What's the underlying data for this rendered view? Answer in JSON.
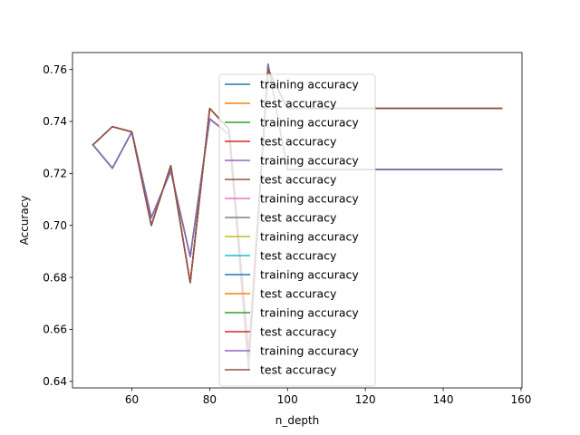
{
  "chart_data": {
    "type": "line",
    "title": "",
    "xlabel": "n_depth",
    "ylabel": "Accuracy",
    "xlim": [
      44.75,
      160.25
    ],
    "ylim": [
      0.6375,
      0.7665
    ],
    "xticks": [
      60,
      80,
      100,
      120,
      140,
      160
    ],
    "yticks": [
      0.64,
      0.66,
      0.68,
      0.7,
      0.72,
      0.74,
      0.76
    ],
    "ytick_labels": [
      "0.64",
      "0.66",
      "0.68",
      "0.70",
      "0.72",
      "0.74",
      "0.76"
    ],
    "grid": false,
    "legend_position": "upper-center",
    "x": [
      50,
      55,
      60,
      65,
      70,
      75,
      80,
      85,
      90,
      95,
      100,
      105,
      110,
      115,
      120,
      125,
      130,
      135,
      140,
      145,
      150,
      155
    ],
    "series": [
      {
        "name": "training accuracy",
        "color": "#1f77b4",
        "values": [
          0.731,
          0.722,
          0.736,
          0.703,
          0.721,
          0.688,
          0.741,
          0.735,
          0.645,
          0.762,
          0.7215,
          0.7215,
          0.7215,
          0.7215,
          0.7215,
          0.7215,
          0.7215,
          0.7215,
          0.7215,
          0.7215,
          0.7215,
          0.7215
        ]
      },
      {
        "name": "test accuracy",
        "color": "#ff7f0e",
        "values": [
          0.731,
          0.738,
          0.736,
          0.7,
          0.723,
          0.678,
          0.745,
          0.737,
          0.65,
          0.76,
          0.745,
          0.745,
          0.745,
          0.745,
          0.745,
          0.745,
          0.745,
          0.745,
          0.745,
          0.745,
          0.745,
          0.745
        ]
      },
      {
        "name": "training accuracy",
        "color": "#2ca02c",
        "values": [
          0.731,
          0.722,
          0.736,
          0.703,
          0.721,
          0.688,
          0.741,
          0.735,
          0.645,
          0.762,
          0.7215,
          0.7215,
          0.7215,
          0.7215,
          0.7215,
          0.7215,
          0.7215,
          0.7215,
          0.7215,
          0.7215,
          0.7215,
          0.7215
        ]
      },
      {
        "name": "test accuracy",
        "color": "#d62728",
        "values": [
          0.731,
          0.738,
          0.736,
          0.7,
          0.723,
          0.678,
          0.745,
          0.737,
          0.65,
          0.76,
          0.745,
          0.745,
          0.745,
          0.745,
          0.745,
          0.745,
          0.745,
          0.745,
          0.745,
          0.745,
          0.745,
          0.745
        ]
      },
      {
        "name": "training accuracy",
        "color": "#9467bd",
        "values": [
          0.731,
          0.722,
          0.736,
          0.703,
          0.721,
          0.688,
          0.741,
          0.735,
          0.645,
          0.762,
          0.7215,
          0.7215,
          0.7215,
          0.7215,
          0.7215,
          0.7215,
          0.7215,
          0.7215,
          0.7215,
          0.7215,
          0.7215,
          0.7215
        ]
      },
      {
        "name": "test accuracy",
        "color": "#8c564b",
        "values": [
          0.731,
          0.738,
          0.736,
          0.7,
          0.723,
          0.678,
          0.745,
          0.737,
          0.65,
          0.76,
          0.745,
          0.745,
          0.745,
          0.745,
          0.745,
          0.745,
          0.745,
          0.745,
          0.745,
          0.745,
          0.745,
          0.745
        ]
      },
      {
        "name": "training accuracy",
        "color": "#e377c2",
        "values": [
          0.731,
          0.722,
          0.736,
          0.703,
          0.721,
          0.688,
          0.741,
          0.735,
          0.645,
          0.762,
          0.7215,
          0.7215,
          0.7215,
          0.7215,
          0.7215,
          0.7215,
          0.7215,
          0.7215,
          0.7215,
          0.7215,
          0.7215,
          0.7215
        ]
      },
      {
        "name": "test accuracy",
        "color": "#7f7f7f",
        "values": [
          0.731,
          0.738,
          0.736,
          0.7,
          0.723,
          0.678,
          0.745,
          0.737,
          0.65,
          0.76,
          0.745,
          0.745,
          0.745,
          0.745,
          0.745,
          0.745,
          0.745,
          0.745,
          0.745,
          0.745,
          0.745,
          0.745
        ]
      },
      {
        "name": "training accuracy",
        "color": "#bcbd22",
        "values": [
          0.731,
          0.722,
          0.736,
          0.703,
          0.721,
          0.688,
          0.741,
          0.735,
          0.645,
          0.762,
          0.7215,
          0.7215,
          0.7215,
          0.7215,
          0.7215,
          0.7215,
          0.7215,
          0.7215,
          0.7215,
          0.7215,
          0.7215,
          0.7215
        ]
      },
      {
        "name": "test accuracy",
        "color": "#17becf",
        "values": [
          0.731,
          0.738,
          0.736,
          0.7,
          0.723,
          0.678,
          0.745,
          0.737,
          0.65,
          0.76,
          0.745,
          0.745,
          0.745,
          0.745,
          0.745,
          0.745,
          0.745,
          0.745,
          0.745,
          0.745,
          0.745,
          0.745
        ]
      },
      {
        "name": "training accuracy",
        "color": "#1f77b4",
        "values": [
          0.731,
          0.722,
          0.736,
          0.703,
          0.721,
          0.688,
          0.741,
          0.735,
          0.645,
          0.762,
          0.7215,
          0.7215,
          0.7215,
          0.7215,
          0.7215,
          0.7215,
          0.7215,
          0.7215,
          0.7215,
          0.7215,
          0.7215,
          0.7215
        ]
      },
      {
        "name": "test accuracy",
        "color": "#ff7f0e",
        "values": [
          0.731,
          0.738,
          0.736,
          0.7,
          0.723,
          0.678,
          0.745,
          0.737,
          0.65,
          0.76,
          0.745,
          0.745,
          0.745,
          0.745,
          0.745,
          0.745,
          0.745,
          0.745,
          0.745,
          0.745,
          0.745,
          0.745
        ]
      },
      {
        "name": "training accuracy",
        "color": "#2ca02c",
        "values": [
          0.731,
          0.722,
          0.736,
          0.703,
          0.721,
          0.688,
          0.741,
          0.735,
          0.645,
          0.762,
          0.7215,
          0.7215,
          0.7215,
          0.7215,
          0.7215,
          0.7215,
          0.7215,
          0.7215,
          0.7215,
          0.7215,
          0.7215,
          0.7215
        ]
      },
      {
        "name": "test accuracy",
        "color": "#d62728",
        "values": [
          0.731,
          0.738,
          0.736,
          0.7,
          0.723,
          0.678,
          0.745,
          0.737,
          0.65,
          0.76,
          0.745,
          0.745,
          0.745,
          0.745,
          0.745,
          0.745,
          0.745,
          0.745,
          0.745,
          0.745,
          0.745,
          0.745
        ]
      },
      {
        "name": "training accuracy",
        "color": "#9467bd",
        "values": [
          0.731,
          0.722,
          0.736,
          0.703,
          0.721,
          0.688,
          0.741,
          0.735,
          0.645,
          0.762,
          0.7215,
          0.7215,
          0.7215,
          0.7215,
          0.7215,
          0.7215,
          0.7215,
          0.7215,
          0.7215,
          0.7215,
          0.7215,
          0.7215
        ]
      },
      {
        "name": "test accuracy",
        "color": "#8c564b",
        "values": [
          0.731,
          0.738,
          0.736,
          0.7,
          0.723,
          0.678,
          0.745,
          0.737,
          0.65,
          0.76,
          0.745,
          0.745,
          0.745,
          0.745,
          0.745,
          0.745,
          0.745,
          0.745,
          0.745,
          0.745,
          0.745,
          0.745
        ]
      }
    ]
  }
}
